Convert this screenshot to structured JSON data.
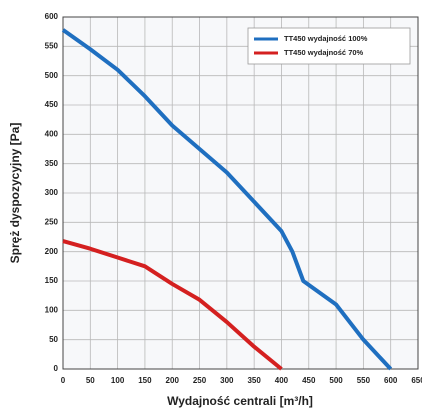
{
  "chart_data": {
    "type": "line",
    "xlabel": "Wydajność centrali [m³/h]",
    "ylabel": "Spręż dyspozycyjny [Pa]",
    "xlim": [
      0,
      650
    ],
    "xticks": [
      0,
      50,
      100,
      150,
      200,
      250,
      300,
      350,
      400,
      450,
      500,
      550,
      600,
      650
    ],
    "ylim": [
      0,
      600
    ],
    "yticks": [
      0,
      50,
      100,
      150,
      200,
      250,
      300,
      350,
      400,
      450,
      500,
      550,
      600
    ],
    "grid": true,
    "legend": "upper right",
    "series": [
      {
        "name": "TT450 wydajność 100%",
        "color": "#1f6fc0",
        "x": [
          0,
          50,
          100,
          150,
          200,
          250,
          300,
          350,
          400,
          420,
          440,
          500,
          550,
          600
        ],
        "values": [
          578,
          545,
          510,
          465,
          415,
          375,
          335,
          285,
          235,
          200,
          150,
          110,
          50,
          0
        ]
      },
      {
        "name": "TT450 wydajność 70%",
        "color": "#d42020",
        "x": [
          0,
          50,
          100,
          150,
          200,
          250,
          300,
          350,
          400
        ],
        "values": [
          218,
          205,
          190,
          175,
          145,
          118,
          80,
          38,
          0
        ]
      }
    ]
  }
}
